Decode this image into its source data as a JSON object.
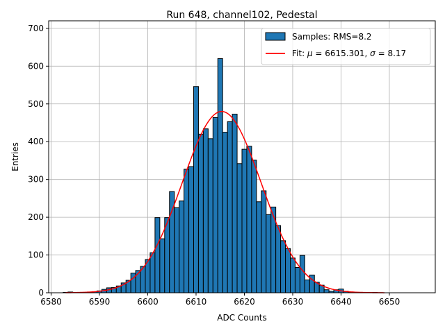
{
  "chart_data": {
    "type": "bar",
    "title": "Run 648, channel102, Pedestal",
    "xlabel": "ADC Counts",
    "ylabel": "Entries",
    "xlim": [
      6579.5,
      6659.5
    ],
    "ylim": [
      0,
      720
    ],
    "grid": true,
    "legend_position": "top-right",
    "x_ticks": [
      6580,
      6590,
      6600,
      6610,
      6620,
      6630,
      6640,
      6650
    ],
    "y_ticks": [
      0,
      100,
      200,
      300,
      400,
      500,
      600,
      700
    ],
    "x_tick_labels": [
      "6580",
      "6590",
      "6600",
      "6610",
      "6620",
      "6630",
      "6640",
      "6650"
    ],
    "y_tick_labels": [
      "0",
      "100",
      "200",
      "300",
      "400",
      "500",
      "600",
      "700"
    ],
    "bin_width": 1,
    "histogram": {
      "name": "Samples: RMS=8.2",
      "color": "#1f77b4",
      "edge_color": "#000000",
      "bin_centers": [
        6583,
        6584,
        6585,
        6586,
        6587,
        6588,
        6589,
        6590,
        6591,
        6592,
        6593,
        6594,
        6595,
        6596,
        6597,
        6598,
        6599,
        6600,
        6601,
        6602,
        6603,
        6604,
        6605,
        6606,
        6607,
        6608,
        6609,
        6610,
        6611,
        6612,
        6613,
        6614,
        6615,
        6616,
        6617,
        6618,
        6619,
        6620,
        6621,
        6622,
        6623,
        6624,
        6625,
        6626,
        6627,
        6628,
        6629,
        6630,
        6631,
        6632,
        6633,
        6634,
        6635,
        6636,
        6637,
        6638,
        6639,
        6640,
        6641,
        6642,
        6643,
        6644,
        6645,
        6646,
        6647,
        6648,
        6649
      ],
      "counts": [
        1,
        2,
        0,
        1,
        1,
        2,
        3,
        5,
        9,
        13,
        14,
        18,
        26,
        33,
        52,
        59,
        70,
        88,
        106,
        199,
        143,
        199,
        268,
        225,
        243,
        327,
        334,
        546,
        420,
        434,
        408,
        464,
        620,
        425,
        453,
        473,
        342,
        380,
        388,
        351,
        241,
        270,
        207,
        227,
        178,
        138,
        117,
        92,
        67,
        99,
        34,
        47,
        28,
        20,
        8,
        4,
        8,
        10,
        4,
        2,
        1,
        1,
        0,
        0,
        1,
        0,
        0
      ]
    },
    "fit": {
      "name": "Fit: μ = 6615.301, σ = 8.17",
      "color": "#ff0000",
      "mu": 6615.301,
      "sigma": 8.17,
      "amplitude": 480,
      "x_range": [
        6583,
        6649
      ]
    }
  },
  "legend": {
    "hist_label_prefix": "Samples: RMS=8.2",
    "fit_label_prefix": "Fit: ",
    "fit_mu_symbol": "μ",
    "fit_mu_value": " = 6615.301, ",
    "fit_sigma_symbol": "σ",
    "fit_sigma_value": " = 8.17"
  }
}
